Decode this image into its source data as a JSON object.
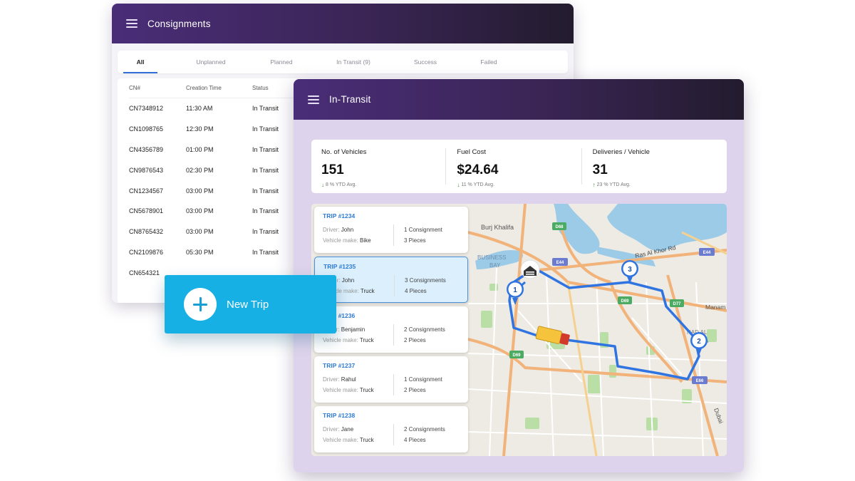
{
  "consignments": {
    "title": "Consignments",
    "tabs": [
      "All",
      "Unplanned",
      "Planned",
      "In Transit (9)",
      "Success",
      "Failed"
    ],
    "active_tab": "All",
    "columns": [
      "CN#",
      "Creation Time",
      "Status"
    ],
    "rows": [
      [
        "CN7348912",
        "11:30 AM",
        "In Transit"
      ],
      [
        "CN1098765",
        "12:30 PM",
        "In Transit"
      ],
      [
        "CN4356789",
        "01:00 PM",
        "In Transit"
      ],
      [
        "CN9876543",
        "02:30 PM",
        "In Transit"
      ],
      [
        "CN1234567",
        "03:00 PM",
        "In Transit"
      ],
      [
        "CN5678901",
        "03:00 PM",
        "In Transit"
      ],
      [
        "CN8765432",
        "03:00 PM",
        "In Transit"
      ],
      [
        "CN2109876",
        "05:30 PM",
        "In Transit"
      ],
      [
        "CN654321",
        "",
        ""
      ]
    ]
  },
  "new_trip": {
    "label": "New Trip",
    "icon": "plus-icon"
  },
  "transit": {
    "title": "In-Transit",
    "kpis": [
      {
        "label": "No. of Vehicles",
        "value": "151",
        "trend": "down",
        "note": "8 % YTD Avg."
      },
      {
        "label": "Fuel Cost",
        "value": "$24.64",
        "trend": "down",
        "note": "11 % YTD Avg."
      },
      {
        "label": "Deliveries / Vehicle",
        "value": "31",
        "trend": "up",
        "note": "23 % YTD Avg."
      }
    ],
    "trips": [
      {
        "id": "TRIP #1234",
        "driver_label": "Driver:",
        "driver": "John",
        "make_label": "Vehicle make:",
        "make": "Bike",
        "consignments": "1 Consignment",
        "pieces": "3 Pieces",
        "selected": false
      },
      {
        "id": "TRIP #1235",
        "driver_label": "Driver:",
        "driver": "John",
        "make_label": "Vehicle make:",
        "make": "Truck",
        "consignments": "3 Consignments",
        "pieces": "4 Pieces",
        "selected": true
      },
      {
        "id": "TRIP #1236",
        "driver_label": "Driver:",
        "driver": "Benjamin",
        "make_label": "Vehicle make:",
        "make": "Truck",
        "consignments": "2 Consignments",
        "pieces": "2 Pieces",
        "selected": false
      },
      {
        "id": "TRIP #1237",
        "driver_label": "Driver:",
        "driver": "Rahul",
        "make_label": "Vehicle make:",
        "make": "Truck",
        "consignments": "1 Consignment",
        "pieces": "2 Pieces",
        "selected": false
      },
      {
        "id": "TRIP #1238",
        "driver_label": "Driver:",
        "driver": "Jane",
        "make_label": "Vehicle make:",
        "make": "Truck",
        "consignments": "2 Consignments",
        "pieces": "4 Pieces",
        "selected": false
      }
    ],
    "map": {
      "labels": {
        "burj": "Burj Khalifa",
        "bay1": "BUSINESS",
        "bay2": "BAY",
        "ras": "Ras Al Khor Rd",
        "manama": "Manam",
        "nad1": "NAD AL",
        "nad2": "A",
        "dubai": "Dubai"
      },
      "road_badges": [
        "D68",
        "E44",
        "E44",
        "D69",
        "D77",
        "D69",
        "E66"
      ],
      "stops": [
        "1",
        "2",
        "3"
      ],
      "route_color": "#2f74e0",
      "water_color": "#9ccbe8",
      "park_color": "#b9dfa7"
    }
  }
}
